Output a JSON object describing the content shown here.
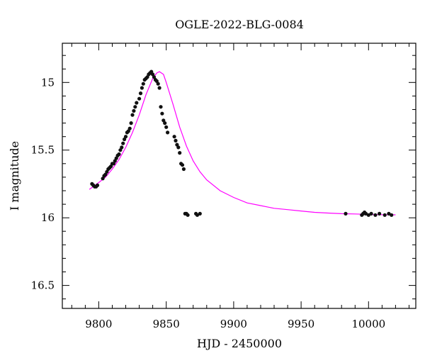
{
  "chart_data": {
    "type": "scatter",
    "title": "OGLE-2022-BLG-0084",
    "xlabel": "HJD - 2450000",
    "ylabel": "I magnitude",
    "xlim": [
      9773,
      10035
    ],
    "ylim": [
      16.67,
      14.71
    ],
    "y_inverted": true,
    "grid": false,
    "x_ticks": [
      9800,
      9850,
      9900,
      9950,
      10000
    ],
    "y_ticks": [
      15,
      15.5,
      16,
      16.5
    ],
    "x_tick_labels": [
      "9800",
      "9850",
      "9900",
      "9950",
      "10000"
    ],
    "y_tick_labels": [
      "15",
      "15.5",
      "16",
      "16.5"
    ],
    "colors": {
      "points": "#111111",
      "model": "#ff00ff",
      "frame": "#000000"
    },
    "series": [
      {
        "kind": "points",
        "x": [
          9795,
          9796,
          9797,
          9798,
          9799,
          9803,
          9804,
          9805,
          9806,
          9807,
          9808,
          9809,
          9810,
          9811,
          9812,
          9813,
          9814,
          9815,
          9816,
          9817,
          9818,
          9819,
          9820,
          9821,
          9822,
          9823,
          9824,
          9825,
          9826,
          9827,
          9828,
          9830,
          9831,
          9832,
          9833,
          9834,
          9835,
          9836,
          9837,
          9838,
          9839,
          9840,
          9841,
          9842,
          9843,
          9844,
          9845,
          9846,
          9847,
          9848,
          9849,
          9850,
          9851,
          9856,
          9857,
          9858,
          9859,
          9860,
          9861,
          9862,
          9863,
          9864,
          9865,
          9866,
          9872,
          9873,
          9875,
          9983,
          9995,
          9996,
          9997,
          9998,
          10000,
          10002,
          10005,
          10008,
          10012,
          10015,
          10017
        ],
        "y": [
          15.75,
          15.76,
          15.77,
          15.77,
          15.76,
          15.71,
          15.69,
          15.68,
          15.66,
          15.64,
          15.63,
          15.62,
          15.6,
          15.6,
          15.58,
          15.56,
          15.54,
          15.53,
          15.5,
          15.48,
          15.45,
          15.42,
          15.4,
          15.37,
          15.36,
          15.34,
          15.3,
          15.24,
          15.21,
          15.18,
          15.15,
          15.12,
          15.08,
          15.04,
          15.01,
          14.98,
          14.97,
          14.96,
          14.94,
          14.93,
          14.92,
          14.94,
          14.96,
          14.98,
          14.99,
          15.01,
          15.04,
          15.18,
          15.23,
          15.28,
          15.3,
          15.33,
          15.37,
          15.4,
          15.43,
          15.46,
          15.48,
          15.52,
          15.6,
          15.61,
          15.64,
          15.97,
          15.97,
          15.98,
          15.97,
          15.98,
          15.97,
          15.97,
          15.98,
          15.97,
          15.96,
          15.97,
          15.98,
          15.97,
          15.98,
          15.97,
          15.98,
          15.97,
          15.98
        ]
      },
      {
        "kind": "line",
        "x": [
          9793,
          9800,
          9805,
          9810,
          9815,
          9820,
          9825,
          9830,
          9835,
          9840,
          9843,
          9845,
          9848,
          9850,
          9855,
          9860,
          9865,
          9870,
          9875,
          9880,
          9890,
          9900,
          9910,
          9920,
          9930,
          9940,
          9950,
          9960,
          9970,
          9980,
          9990,
          10000,
          10010,
          10020
        ],
        "y": [
          15.79,
          15.74,
          15.7,
          15.64,
          15.57,
          15.48,
          15.37,
          15.24,
          15.09,
          14.97,
          14.93,
          14.92,
          14.94,
          15.0,
          15.16,
          15.33,
          15.47,
          15.58,
          15.66,
          15.72,
          15.8,
          15.85,
          15.89,
          15.91,
          15.93,
          15.94,
          15.95,
          15.96,
          15.965,
          15.97,
          15.972,
          15.975,
          15.977,
          15.978
        ]
      }
    ]
  }
}
